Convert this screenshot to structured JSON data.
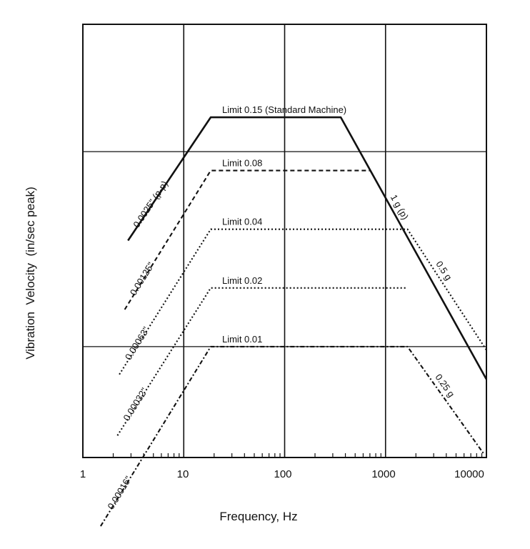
{
  "chart_data": {
    "type": "line",
    "title": "",
    "xlabel": "Frequency, Hz",
    "ylabel": "Vibration  Velocity  (in/sec peak)",
    "x_scale": "log",
    "y_scale": "log",
    "xlim": [
      1,
      10000
    ],
    "ylim": [
      0.0027,
      0.45
    ],
    "x_ticks": [
      1,
      10,
      100,
      1000,
      10000
    ],
    "x_tick_labels": [
      "1",
      "10",
      "100",
      "1000",
      "10000"
    ],
    "y_gridlines": [
      0.1,
      0.01
    ],
    "series": [
      {
        "name": "Limit 0.15 (Standard Machine)",
        "label": "Limit 0.15 (Standard Machine)",
        "style": "solid",
        "x": [
          2.8,
          18.5,
          360,
          10000
        ],
        "y": [
          0.035,
          0.15,
          0.15,
          0.0068
        ],
        "low_label": "0.0025\" (p-p)",
        "high_label": "1 g (p)"
      },
      {
        "name": "Limit 0.08",
        "label": "Limit 0.08",
        "style": "dashed",
        "x": [
          2.6,
          18.5,
          700
        ],
        "y": [
          0.0155,
          0.08,
          0.08
        ],
        "low_label": "0.00125\"",
        "high_label": ""
      },
      {
        "name": "Limit 0.04",
        "label": "Limit 0.04",
        "style": "dotted",
        "x": [
          2.3,
          18.5,
          1650,
          10000
        ],
        "y": [
          0.0072,
          0.04,
          0.04,
          0.0096
        ],
        "low_label": "0.00063\"",
        "high_label": "0.5 g"
      },
      {
        "name": "Limit 0.02",
        "label": "Limit 0.02",
        "style": "dotted",
        "x": [
          2.2,
          18.5,
          1650
        ],
        "y": [
          0.0035,
          0.02,
          0.02
        ],
        "low_label": "0.00032\"",
        "high_label": ""
      },
      {
        "name": "Limit 0.01",
        "label": "Limit 0.01",
        "style": "dashdot",
        "x": [
          1.5,
          18.5,
          1650,
          9500
        ],
        "y": [
          0.0012,
          0.01,
          0.01,
          0.0028
        ],
        "low_label": "0.00016\"",
        "high_label": "0.25 g"
      }
    ],
    "colors": {
      "line": "#111111",
      "grid": "#111111",
      "background": "#ffffff"
    }
  }
}
